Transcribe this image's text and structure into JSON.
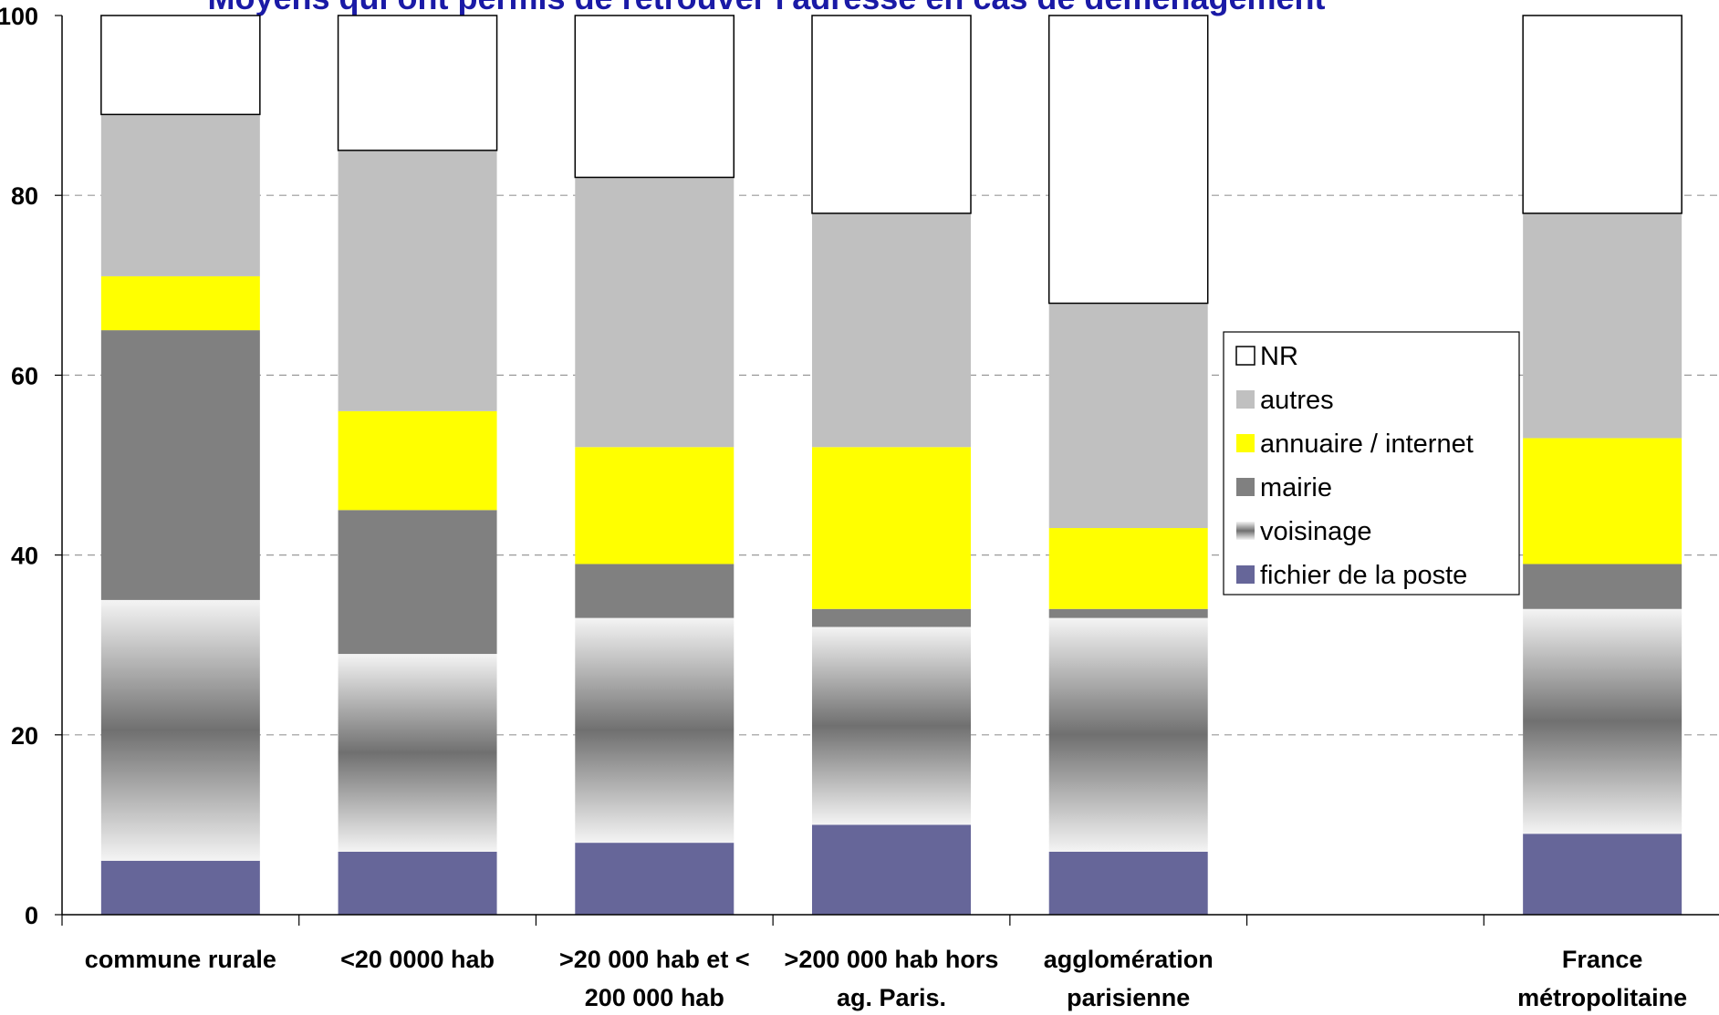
{
  "chart_data": {
    "type": "bar",
    "stacked": true,
    "title": "Moyens qui ont permis de retrouver l'adresse en cas de déménagement",
    "categories": [
      "commune rurale",
      "<20 0000 hab",
      ">20 000 hab et < 200 000 hab",
      ">200 000 hab hors ag. Paris.",
      "agglomération parisienne",
      null,
      "France métropolitaine"
    ],
    "series": [
      {
        "name": "fichier de la poste",
        "color": "#666699",
        "values": [
          6,
          7,
          8,
          10,
          7,
          null,
          9
        ]
      },
      {
        "name": "voisinage",
        "color": "#777777",
        "gradient": true,
        "values": [
          29,
          22,
          25,
          22,
          26,
          null,
          25
        ]
      },
      {
        "name": "mairie",
        "color": "#808080",
        "values": [
          30,
          16,
          6,
          2,
          1,
          null,
          5
        ]
      },
      {
        "name": "annuaire / internet",
        "color": "#ffff00",
        "values": [
          6,
          11,
          13,
          18,
          9,
          null,
          14
        ]
      },
      {
        "name": "autres",
        "color": "#c0c0c0",
        "values": [
          18,
          29,
          30,
          26,
          25,
          null,
          25
        ]
      },
      {
        "name": "NR",
        "color": "#ffffff",
        "values": [
          11,
          15,
          18,
          22,
          32,
          null,
          22
        ]
      }
    ],
    "ylim": [
      0,
      100
    ],
    "yticks": [
      0,
      20,
      40,
      60,
      80,
      100
    ],
    "grid": true,
    "legend": "right"
  }
}
